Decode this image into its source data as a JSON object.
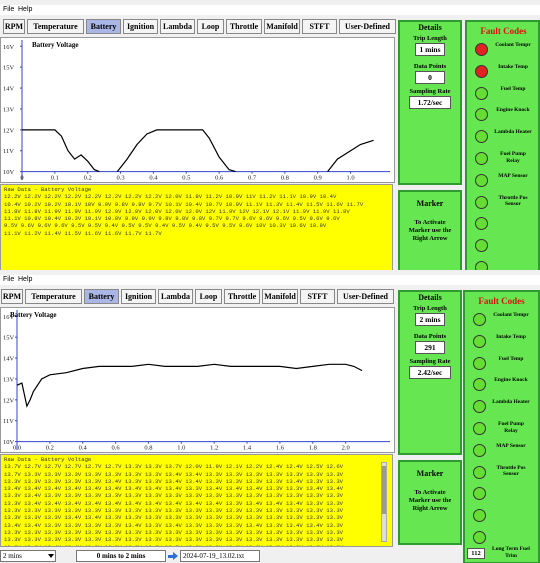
{
  "windows": [
    {
      "menu": [
        "File",
        "Help"
      ],
      "tabs": [
        "RPM",
        "Temperature",
        "Battery",
        "Ignition",
        "Lambda",
        "Loop",
        "Throttle",
        "Manifold",
        "STFT",
        "User-Defined"
      ],
      "selected_tab": "Battery",
      "chart_data": {
        "type": "line",
        "title": "Battery Voltage",
        "x": [
          0,
          0.1,
          0.12,
          0.14,
          0.16,
          0.18,
          0.2,
          0.22,
          0.235,
          0.26,
          0.29,
          0.32,
          0.35,
          0.38,
          0.41,
          0.55,
          0.57,
          0.6,
          0.63,
          0.65,
          0.8,
          0.93,
          0.96,
          1.0,
          1.03,
          1.07
        ],
        "series": [
          {
            "color": "#000000",
            "values": [
              12,
              12,
              11.7,
              11.0,
              10.6,
              10.8,
              10.5,
              10.1,
              10,
              null,
              10,
              10.6,
              11.3,
              11.8,
              12,
              12,
              11.6,
              10.7,
              10.1,
              10,
              null,
              10,
              10.6,
              11.0,
              11.3,
              11.5
            ]
          }
        ],
        "xlim": [
          0,
          1.12
        ],
        "xticks": [
          0,
          0.1,
          0.2,
          0.3,
          0.4,
          0.5,
          0.6,
          0.7,
          0.8,
          0.9,
          {
            "value": 1,
            "label": "1.0"
          }
        ],
        "ylim": [
          9.6,
          16.3
        ],
        "yticks": [
          {
            "value": 10,
            "label": "10V"
          },
          {
            "value": 11,
            "label": "11V"
          },
          {
            "value": 12,
            "label": "12V"
          },
          {
            "value": 13,
            "label": "13V"
          },
          {
            "value": 14,
            "label": "14V"
          },
          {
            "value": 15,
            "label": "15V"
          },
          {
            "value": 16,
            "label": "16V"
          }
        ],
        "axis_color": "#3344cc"
      },
      "raw_data": {
        "title": "Raw Data - Battery Voltage",
        "lines": [
          "12.2V 12.2V 12.2V 12.2V 12.2V 12.2V 12.2V 12.2V 12.0V 11.8V 11.2V 10.9V 11V 11.2V 11.1V 10.9V 10.4V",
          "10.4V 10.2V 10.2V 10.1V 10V 9.9V 9.8V 9.8V 9.7V 10.1V 10.4V 10.7V 10.9V 11.1V 11.3V 11.4V 11.5V 11.6V 11.7V",
          "11.8V 11.8V 11.9V 11.9V 11.9V 12.0V 12.0V 12.0V 12.0V 12.0V 12V 11.9V 12V 12.1V 12.1V 11.9V 11.9V 11.8V",
          "11.1V 10.8V 10.4V 10.3V 10.1V 10.0V 9.9V 9.9V 9.8V 9.8V 9.8V 9.7V 9.7V 9.6V 9.6V 9.6V 9.5V 9.6V 9.6V",
          "9.5V 9.6V 9.6V 9.6V 9.5V 9.5V 9.4V 9.5V 9.5V 9.4V 9.5V 9.4V 9.5V 9.5V 9.6V 10V 10.3V 10.6V 10.9V",
          "11.1V 11.2V 11.4V 11.5V 11.6V 11.6V 11.7V 11.7V"
        ]
      },
      "details": {
        "title": "Details",
        "trip_length_label": "Trip Length",
        "trip_length": "1 mins",
        "data_points_label": "Data Points",
        "data_points": "0",
        "sampling_rate_label": "Sampling Rate",
        "sampling_rate": "1.72/sec"
      },
      "marker": {
        "title": "Marker",
        "text": "To Activate Marker use the Right Arrow"
      },
      "fault_codes": {
        "title": "Fault Codes",
        "items": [
          {
            "label": "Coolant Tempr",
            "color": "#e02222"
          },
          {
            "label": "Intake Temp",
            "color": "#e02222"
          },
          {
            "label": "Fuel Temp",
            "color": "#66dd33"
          },
          {
            "label": "Engine Knock",
            "color": "#66dd33"
          },
          {
            "label": "Lambda Heater",
            "color": "#66dd33"
          },
          {
            "label": "Fuel Pump Relay",
            "color": "#66dd33"
          },
          {
            "label": "MAP Sensor",
            "color": "#66dd33"
          },
          {
            "label": "Throttle Pos Sensor",
            "color": "#66dd33"
          }
        ]
      }
    },
    {
      "menu": [
        "File",
        "Help"
      ],
      "tabs": [
        "RPM",
        "Temperature",
        "Battery",
        "Ignition",
        "Lambda",
        "Loop",
        "Throttle",
        "Manifold",
        "STFT",
        "User-Defined"
      ],
      "selected_tab": "Battery",
      "chart_data": {
        "type": "line",
        "title": "Battery Voltage",
        "x": [
          0,
          0.03,
          0.06,
          0.08,
          0.1,
          0.15,
          0.2,
          0.3,
          0.4,
          0.5,
          0.6,
          0.7,
          0.8,
          0.9,
          1.0,
          1.1,
          1.2,
          1.3,
          1.4,
          1.5,
          1.6,
          1.7,
          1.8,
          1.9,
          2.0,
          2.05,
          2.1
        ],
        "series": [
          {
            "color": "#000000",
            "values": [
              12.7,
              12.8,
              11.7,
              12.0,
              12.4,
              13.0,
              13.2,
              13.3,
              13.5,
              13.6,
              13.6,
              13.6,
              13.7,
              13.6,
              13.6,
              13.6,
              13.7,
              13.6,
              13.6,
              13.6,
              13.6,
              13.5,
              13.6,
              13.7,
              13.7,
              13.6,
              13.4
            ]
          }
        ],
        "xlim": [
          0,
          2.27
        ],
        "xticks": [
          {
            "value": 0,
            "label": "0.0"
          },
          0.2,
          0.4,
          0.6,
          0.8,
          {
            "value": 1,
            "label": "1.0"
          },
          1.2,
          1.4,
          1.6,
          1.8,
          {
            "value": 2,
            "label": "2.0"
          }
        ],
        "ylim": [
          9.6,
          16.3
        ],
        "yticks": [
          {
            "value": 10,
            "label": "10V"
          },
          {
            "value": 11,
            "label": "11V"
          },
          {
            "value": 12,
            "label": "12V"
          },
          {
            "value": 13,
            "label": "13V"
          },
          {
            "value": 14,
            "label": "14V"
          },
          {
            "value": 15,
            "label": "15V"
          },
          {
            "value": 16,
            "label": "16V"
          }
        ],
        "axis_color": "#3344cc"
      },
      "raw_data": {
        "title": "Raw Data - Battery Voltage",
        "lines": [
          "13.7V 12.7V 12.7V 12.7V 12.7V 12.7V 13.3V 13.3V 13.7V 12.0V 11.9V 12.1V 12.2V 12.4V 12.4V 12.5V 12.6V",
          "13.7V 13.3V 13.3V 13.3V 13.3V 13.3V 13.3V 13.3V 13.4V 13.4V 13.3V 13.3V 13.3V 13.3V 13.3V 13.3V 13.3V",
          "13.3V 13.3V 13.3V 13.3V 13.3V 13.4V 13.3V 13.3V 13.4V 13.4V 13.3V 13.3V 13.3V 13.3V 13.4V 13.3V 13.3V",
          "13.4V 13.4V 13.4V 13.4V 13.4V 13.4V 13.4V 13.4V 13.4V 13.3V 13.4V 13.4V 13.4V 13.3V 13.3V 13.4V 13.4V",
          "13.3V 13.4V 13.3V 13.3V 13.3V 13.3V 13.3V 13.3V 13.3V 13.3V 13.3V 13.3V 13.3V 13.3V 13.3V 13.3V 13.3V",
          "13.3V 13.4V 13.4V 13.4V 13.4V 13.4V 13.4V 13.4V 13.4V 13.4V 13.4V 13.3V 13.4V 13.4V 13.4V 13.3V 13.3V",
          "13.3V 13.3V 13.3V 13.3V 13.3V 13.3V 13.3V 13.3V 13.3V 13.3V 13.3V 13.3V 13.3V 13.3V 13.3V 13.3V 13.3V",
          "13.3V 13.3V 13.3V 13.4V 13.4V 13.3V 13.3V 13.3V 13.3V 13.3V 13.3V 13.3V 13.3V 13.3V 13.3V 13.3V 13.3V",
          "13.4V 13.4V 13.3V 13.3V 13.3V 13.3V 13.4V 13.3V 13.4V 13.3V 13.3V 13.3V 13.4V 13.3V 13.4V 13.4V 13.3V",
          "13.3V 13.3V 13.3V 13.3V 13.3V 13.3V 13.3V 13.3V 13.3V 13.3V 13.3V 13.3V 13.3V 13.3V 13.3V 13.3V 13.3V",
          "13.3V 13.3V 13.3V 13.3V 13.3V 13.3V 13.3V 13.3V 13.3V 13.3V 13.3V 13.3V 13.3V 13.3V 13.3V 13.3V 13.3V",
          "13.3V 13.3V 13.4V 13.4V 13.3V 13.3V 13.3V 13.3V 13.3V 13.3V 13.3V 13.3V 13.3V 13.3V 13.3V 13.3V 13.3V"
        ]
      },
      "details": {
        "title": "Details",
        "trip_length_label": "Trip Length",
        "trip_length": "2 mins",
        "data_points_label": "Data Points",
        "data_points": "291",
        "sampling_rate_label": "Sampling Rate",
        "sampling_rate": "2.42/sec"
      },
      "marker": {
        "title": "Marker",
        "text": "To Activate Marker use the Right Arrow"
      },
      "fault_codes": {
        "title": "Fault Codes",
        "items": [
          {
            "label": "Coolant Tempr",
            "color": "#66dd33"
          },
          {
            "label": "Intake Temp",
            "color": "#66dd33"
          },
          {
            "label": "Fuel Temp",
            "color": "#66dd33"
          },
          {
            "label": "Engine Knock",
            "color": "#66dd33"
          },
          {
            "label": "Lambda Heater",
            "color": "#66dd33"
          },
          {
            "label": "Fuel Pump Relay",
            "color": "#66dd33"
          },
          {
            "label": "MAP Sensor",
            "color": "#66dd33"
          },
          {
            "label": "Throttle Pos Sensor",
            "color": "#66dd33"
          }
        ],
        "ltft_value": "112",
        "ltft_label": "Long Term Fuel Trim"
      }
    }
  ],
  "status_bar": {
    "range": "2 mins",
    "span": "0 mins to 2 mins",
    "file": "2024-07-19_13.02.txt"
  }
}
